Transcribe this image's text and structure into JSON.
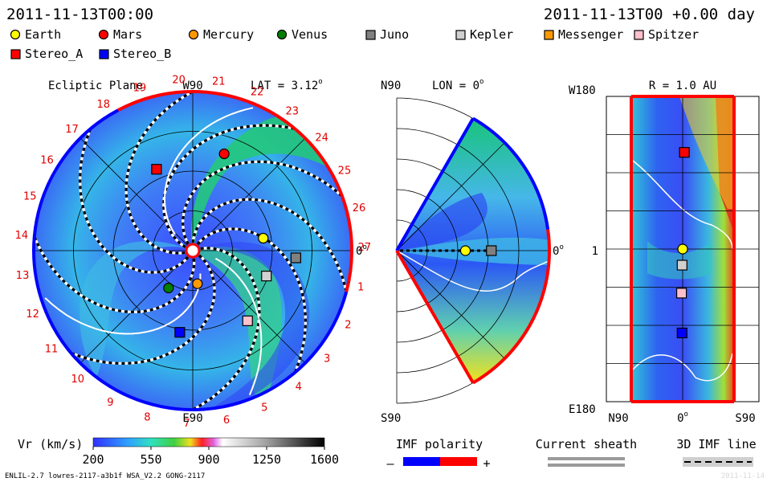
{
  "header": {
    "left_date": "2011-11-13T00:00",
    "right_date": "2011-11-13T00 +0.00 day"
  },
  "legend": [
    {
      "name": "Earth",
      "shape": "circle",
      "color": "#ffff00"
    },
    {
      "name": "Mars",
      "shape": "circle",
      "color": "#ff0000"
    },
    {
      "name": "Mercury",
      "shape": "circle",
      "color": "#ff9900"
    },
    {
      "name": "Venus",
      "shape": "circle",
      "color": "#008000"
    },
    {
      "name": "Juno",
      "shape": "square",
      "color": "#808080"
    },
    {
      "name": "Kepler",
      "shape": "square",
      "color": "#d0d0d0"
    },
    {
      "name": "Messenger",
      "shape": "square",
      "color": "#ff9900"
    },
    {
      "name": "Spitzer",
      "shape": "square",
      "color": "#ffc0cb"
    },
    {
      "name": "Stereo_A",
      "shape": "square",
      "color": "#ff0000"
    },
    {
      "name": "Stereo_B",
      "shape": "square",
      "color": "#0000ff"
    }
  ],
  "chart_data": [
    {
      "type": "heatmap",
      "panel": "ecliptic",
      "title": "Ecliptic Plane",
      "lat_label": "LAT = 3.12",
      "lat_unit": "o",
      "top_label": "W90",
      "bottom_label": "E90",
      "right_label": "0",
      "right_unit": "o",
      "sector_labels": [
        "1",
        "2",
        "3",
        "4",
        "5",
        "6",
        "7",
        "8",
        "9",
        "10",
        "11",
        "12",
        "13",
        "14",
        "15",
        "16",
        "17",
        "18",
        "19",
        "20",
        "21",
        "22",
        "23",
        "24",
        "25",
        "26",
        "27"
      ],
      "bodies": [
        {
          "name": "Earth",
          "r": 0.45,
          "ang_deg": 10
        },
        {
          "name": "Mars",
          "r": 0.64,
          "ang_deg": 72
        },
        {
          "name": "Mercury",
          "r": 0.21,
          "ang_deg": -82
        },
        {
          "name": "Venus",
          "r": 0.28,
          "ang_deg": -123
        },
        {
          "name": "Juno",
          "r": 0.65,
          "ang_deg": -4
        },
        {
          "name": "Kepler",
          "r": 0.49,
          "ang_deg": -19
        },
        {
          "name": "Spitzer",
          "r": 0.56,
          "ang_deg": -52
        },
        {
          "name": "Stereo_A",
          "r": 0.56,
          "ang_deg": 114
        },
        {
          "name": "Stereo_B",
          "r": 0.52,
          "ang_deg": -99
        }
      ]
    },
    {
      "type": "heatmap",
      "panel": "meridional",
      "lon_label": "LON = 0",
      "lon_unit": "o",
      "top_label": "N90",
      "bottom_label": "S90",
      "right_label": "0",
      "right_unit": "o",
      "bodies": [
        {
          "name": "Earth",
          "r": 0.45,
          "lat_deg": 0
        },
        {
          "name": "Juno",
          "r": 0.62,
          "lat_deg": 0
        }
      ]
    },
    {
      "type": "heatmap",
      "panel": "sphere",
      "title": "R = 1.0 AU",
      "top_label": "W180",
      "mid_label": "1",
      "bottom_label": "E180",
      "x_labels": [
        "N90",
        "0",
        "S90"
      ],
      "x_mid_unit": "o",
      "bodies": [
        {
          "name": "Stereo_A",
          "lat": -3,
          "lon": 114
        },
        {
          "name": "Earth",
          "lat": 0,
          "lon": 0
        },
        {
          "name": "Kepler",
          "lat": 1,
          "lon": -19
        },
        {
          "name": "Spitzer",
          "lat": 2,
          "lon": -52
        },
        {
          "name": "Stereo_B",
          "lat": 1,
          "lon": -99
        }
      ]
    }
  ],
  "colorbar": {
    "label": "Vr (km/s)",
    "ticks": [
      "200",
      "550",
      "900",
      "1250",
      "1600"
    ],
    "min": 200,
    "max": 1600
  },
  "imf": {
    "title": "IMF polarity",
    "minus": "–",
    "plus": "+",
    "neg_color": "#0000ff",
    "pos_color": "#ff0000"
  },
  "current_sheath": {
    "title": "Current sheath"
  },
  "imf_line": {
    "title": "3D IMF line"
  },
  "footer": {
    "left": "ENLIL-2.7 lowres-2117-a3b1f WSA_V2.2 GONG-2117",
    "right": "2011-11-14"
  }
}
